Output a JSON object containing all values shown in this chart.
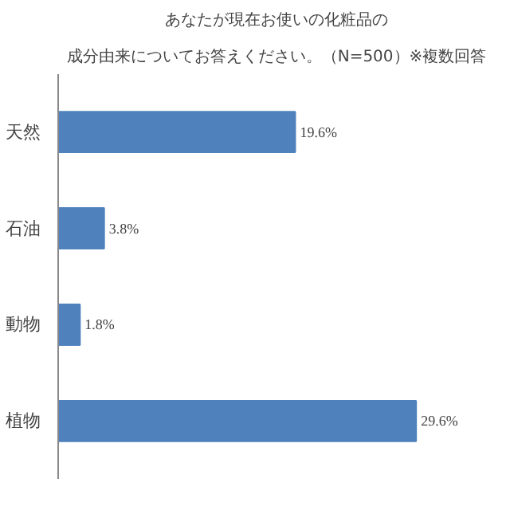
{
  "chart_data": {
    "type": "bar",
    "orientation": "horizontal",
    "title": "あなたが現在お使いの化粧品の",
    "subtitle": "成分由来についてお答えください。（N=500）※複数回答",
    "categories": [
      "天然",
      "石油",
      "動物",
      "植物"
    ],
    "values": [
      19.6,
      3.8,
      1.8,
      29.6
    ],
    "value_labels": [
      "19.6%",
      "3.8%",
      "1.8%",
      "29.6%"
    ],
    "color": "#4f81bd",
    "grid": false
  }
}
